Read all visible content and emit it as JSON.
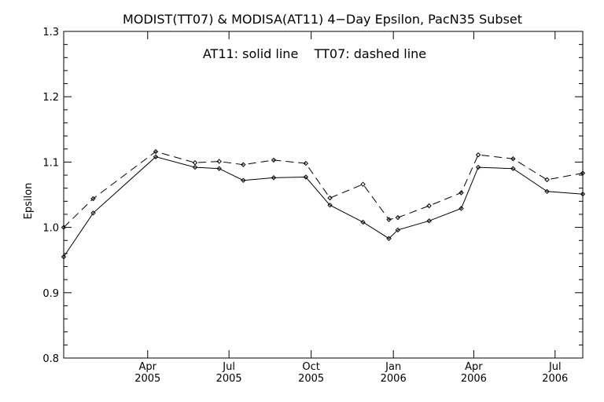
{
  "chart_data": {
    "type": "line",
    "title": "MODIST(TT07) & MODISA(AT11) 4−Day Epsilon, PacN35 Subset",
    "annotation": "AT11: solid line    TT07: dashed line",
    "ylabel": "Epsilon",
    "xlabel": "",
    "ylim": [
      0.8,
      1.3
    ],
    "xlim": [
      "2004-12-28",
      "2006-08-01"
    ],
    "yticks": [
      "0.8",
      "0.9",
      "1.0",
      "1.1",
      "1.2",
      "1.3"
    ],
    "xticks": [
      {
        "date": "2005-04-01",
        "month": "Apr",
        "year": "2005"
      },
      {
        "date": "2005-07-01",
        "month": "Jul",
        "year": "2005"
      },
      {
        "date": "2005-10-01",
        "month": "Oct",
        "year": "2005"
      },
      {
        "date": "2006-01-01",
        "month": "Jan",
        "year": "2006"
      },
      {
        "date": "2006-04-01",
        "month": "Apr",
        "year": "2006"
      },
      {
        "date": "2006-07-01",
        "month": "Jul",
        "year": "2006"
      }
    ],
    "series": [
      {
        "label": "AT11",
        "style": "solid",
        "points": [
          [
            "2004-12-28",
            0.955
          ],
          [
            "2005-01-30",
            1.022
          ],
          [
            "2005-04-10",
            1.108
          ],
          [
            "2005-05-24",
            1.092
          ],
          [
            "2005-06-20",
            1.09
          ],
          [
            "2005-07-17",
            1.072
          ],
          [
            "2005-08-20",
            1.076
          ],
          [
            "2005-09-25",
            1.077
          ],
          [
            "2005-10-22",
            1.034
          ],
          [
            "2005-11-28",
            1.008
          ],
          [
            "2005-12-27",
            0.983
          ],
          [
            "2006-01-06",
            0.996
          ],
          [
            "2006-02-10",
            1.01
          ],
          [
            "2006-03-18",
            1.029
          ],
          [
            "2006-04-06",
            1.092
          ],
          [
            "2006-05-15",
            1.09
          ],
          [
            "2006-06-22",
            1.055
          ],
          [
            "2006-08-01",
            1.051
          ]
        ]
      },
      {
        "label": "TT07",
        "style": "dashed",
        "points": [
          [
            "2004-12-28",
            1.0
          ],
          [
            "2005-01-30",
            1.044
          ],
          [
            "2005-04-10",
            1.116
          ],
          [
            "2005-05-24",
            1.099
          ],
          [
            "2005-06-20",
            1.101
          ],
          [
            "2005-07-17",
            1.096
          ],
          [
            "2005-08-20",
            1.103
          ],
          [
            "2005-09-25",
            1.098
          ],
          [
            "2005-10-22",
            1.045
          ],
          [
            "2005-11-28",
            1.066
          ],
          [
            "2005-12-27",
            1.012
          ],
          [
            "2006-01-06",
            1.015
          ],
          [
            "2006-02-10",
            1.033
          ],
          [
            "2006-03-18",
            1.053
          ],
          [
            "2006-04-06",
            1.111
          ],
          [
            "2006-05-15",
            1.105
          ],
          [
            "2006-06-22",
            1.073
          ],
          [
            "2006-08-01",
            1.083
          ]
        ]
      }
    ]
  }
}
